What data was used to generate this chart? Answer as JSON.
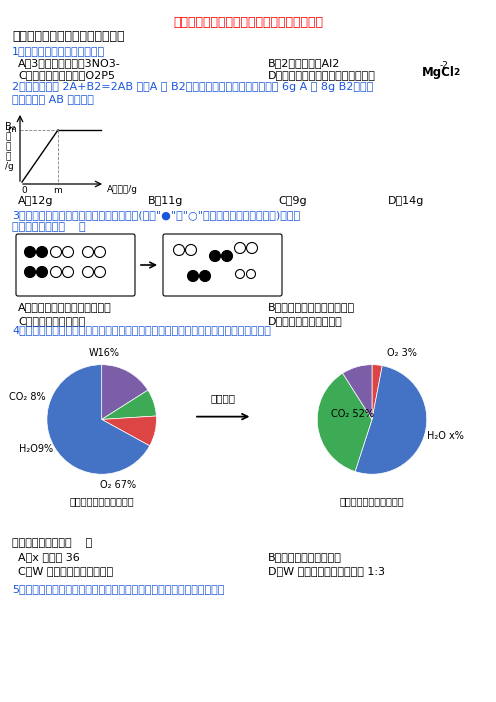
{
  "title": "初三化学质量守恒定律培优达标检测卷含答案",
  "section1": "一、初中化学质量守恒定律选择题",
  "q1": "1．下列化学用语书写正确的是",
  "q1_A": "A．3个硝酸根离子：3NO3-",
  "q1_B": "B．2个铝原子：Al2",
  "q1_C": "C．五氧化二磷分子：O2P5",
  "q1_D": "D．标出氯化镁中氯元素的化合价：",
  "q2_line1": "2．在化学反应 2A+B2=2AB 中，A 与 B2反应的质量关系如图所示，现将 6g A 和 8g B2充分反",
  "q2_line2": "应，则生成 AB 的质量是",
  "q2_A": "A．12g",
  "q2_B": "B．11g",
  "q2_C": "C．9g",
  "q2_D": "D．14g",
  "q3_line1": "3．某反应前后分子变化的微观示意图如下(图中\"●\"和\"○\"分别代表不同元素的原子)，下列",
  "q3_line2": "说法不正确的是（    ）",
  "q3_A": "A．该反应前后涉及到三种物质",
  "q3_B": "B．反应后分子种类没有改变",
  "q3_C": "C．反应后分子数增多",
  "q3_D": "D．该反应属于分解反应",
  "q4": "4．一定条件下，在一个密闭容器内发生某反应，测得反应前后各物质的质量如图所示：",
  "q4_before_sizes": [
    16,
    8,
    9,
    67
  ],
  "q4_before_colors": [
    "#7B5EA7",
    "#3DAA55",
    "#DD4444",
    "#4472C4"
  ],
  "q4_after_sizes": [
    3,
    52,
    36,
    9
  ],
  "q4_after_colors": [
    "#DD4444",
    "#4472C4",
    "#3DAA55",
    "#7B5EA7"
  ],
  "q4_caption_left": "反应前各物质的质量分数",
  "q4_caption_right": "反应后各物质的质量分数",
  "q4_arrow": "一定条件",
  "q4_q": "下列说法正确的是（    ）",
  "q4_A": "A．x 的值为 36",
  "q4_B": "B．该反应属于化合反应",
  "q4_C": "C．W 由碳、氢两种元素组成",
  "q4_D": "D．W 中碳、氢元素质量比为 1:3",
  "q5_start": "5．图反映了某个化学反应各物质质量与时间的关系，下列描述正确的是"
}
